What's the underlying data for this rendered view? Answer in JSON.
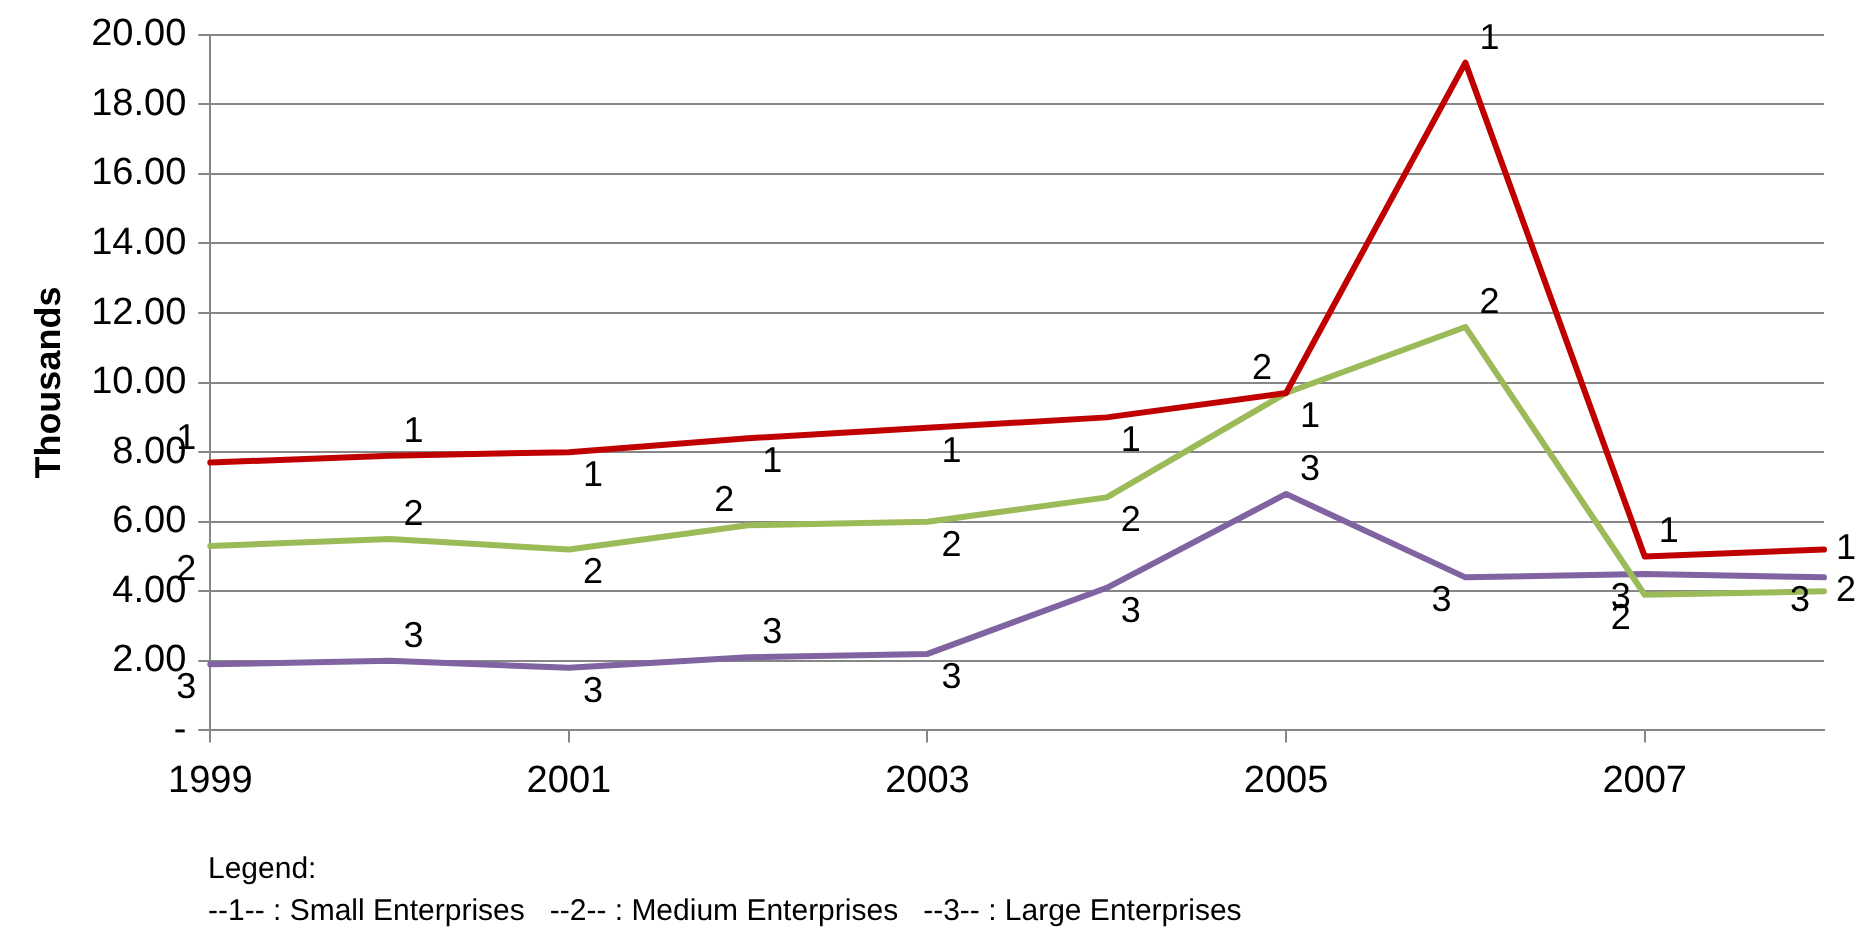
{
  "chart_data": {
    "type": "line",
    "ylabel": "Thousands",
    "x": [
      1999,
      2000,
      2001,
      2002,
      2003,
      2004,
      2005,
      2006,
      2007,
      2008
    ],
    "xlim": [
      1999,
      2008
    ],
    "xticks": [
      1999,
      2001,
      2003,
      2005,
      2007
    ],
    "ylim": [
      0,
      20
    ],
    "yticks": [
      {
        "value": 0,
        "label": "-"
      },
      {
        "value": 2,
        "label": "2.00"
      },
      {
        "value": 4,
        "label": "4.00"
      },
      {
        "value": 6,
        "label": "6.00"
      },
      {
        "value": 8,
        "label": "8.00"
      },
      {
        "value": 10,
        "label": "10.00"
      },
      {
        "value": 12,
        "label": "12.00"
      },
      {
        "value": 14,
        "label": "14.00"
      },
      {
        "value": 16,
        "label": "16.00"
      },
      {
        "value": 18,
        "label": "18.00"
      },
      {
        "value": 20,
        "label": "20.00"
      }
    ],
    "grid": "y",
    "legend": false,
    "series": [
      {
        "name": "1",
        "color": "#c00000",
        "values": [
          7.7,
          7.9,
          8.0,
          8.4,
          8.7,
          9.0,
          9.7,
          19.2,
          5.0,
          5.2
        ]
      },
      {
        "name": "2",
        "color": "#9bbb59",
        "values": [
          5.3,
          5.5,
          5.2,
          5.9,
          6.0,
          6.7,
          9.7,
          11.6,
          3.9,
          4.0
        ]
      },
      {
        "name": "3",
        "color": "#8064a2",
        "values": [
          1.9,
          2.0,
          1.8,
          2.1,
          2.2,
          4.1,
          6.8,
          4.4,
          4.5,
          4.4
        ]
      }
    ],
    "annotations": [
      "Legend:",
      "--1-- : Small Enterprises   --2-- : Medium Enterprises   --3-- : Large Enterprises"
    ]
  }
}
